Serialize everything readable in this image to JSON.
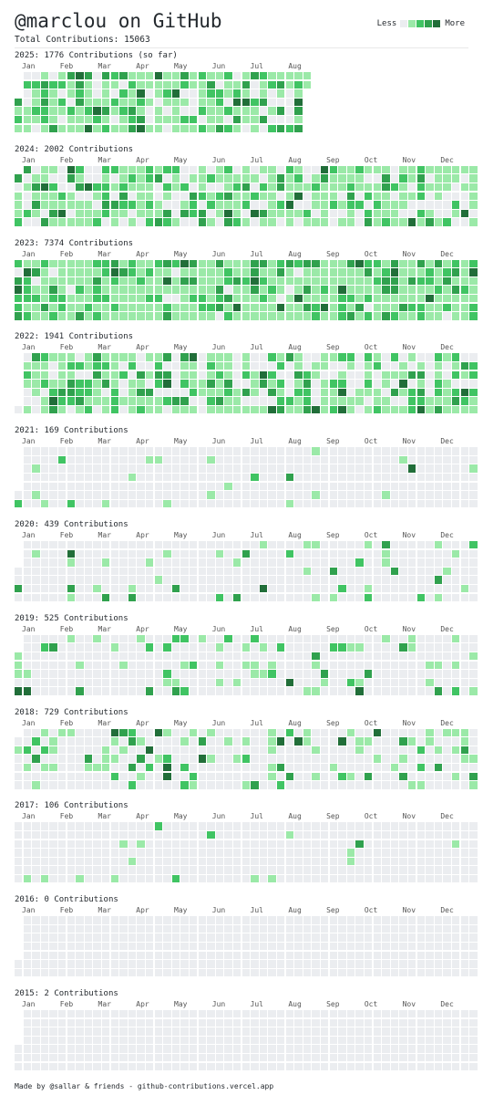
{
  "header": {
    "title": "@marclou on GitHub",
    "total": "Total Contributions: 15063",
    "legend_less": "Less",
    "legend_more": "More"
  },
  "colors": {
    "l0": "#ebedf0",
    "l1": "#9be9a8",
    "l2": "#40c463",
    "l3": "#30a14e",
    "l4": "#216e39"
  },
  "month_names": [
    "Jan",
    "Feb",
    "Mar",
    "Apr",
    "May",
    "Jun",
    "Jul",
    "Aug",
    "Sep",
    "Oct",
    "Nov",
    "Dec"
  ],
  "years": [
    {
      "title": "2025: 1776 Contributions (so far)",
      "year": 2025,
      "months": [
        "Jan",
        "Feb",
        "Mar",
        "Apr",
        "May",
        "Jun",
        "Jul",
        "Aug"
      ],
      "weeks": 34,
      "intensity": 1.6,
      "seed": 11
    },
    {
      "title": "2024: 2002 Contributions",
      "year": 2024,
      "months": [
        "Jan",
        "Feb",
        "Mar",
        "Apr",
        "May",
        "Jun",
        "Jul",
        "Aug",
        "Sep",
        "Oct",
        "Nov",
        "Dec"
      ],
      "weeks": 53,
      "intensity": 1.4,
      "seed": 23
    },
    {
      "title": "2023: 7374 Contributions",
      "year": 2023,
      "months": [
        "Jan",
        "Feb",
        "Mar",
        "Apr",
        "May",
        "Jun",
        "Jul",
        "Aug",
        "Sep",
        "Oct",
        "Nov",
        "Dec"
      ],
      "weeks": 53,
      "intensity": 1.9,
      "seed": 37
    },
    {
      "title": "2022: 1941 Contributions",
      "year": 2022,
      "months": [
        "Jan",
        "Feb",
        "Mar",
        "Apr",
        "May",
        "Jun",
        "Jul",
        "Aug",
        "Sep",
        "Oct",
        "Nov",
        "Dec"
      ],
      "weeks": 53,
      "intensity": 1.5,
      "seed": 41
    },
    {
      "title": "2021: 169 Contributions",
      "year": 2021,
      "months": [
        "Jan",
        "Feb",
        "Mar",
        "Apr",
        "May",
        "Jun",
        "Jul",
        "Aug",
        "Sep",
        "Oct",
        "Nov",
        "Dec"
      ],
      "weeks": 53,
      "intensity": 0.12,
      "seed": 53
    },
    {
      "title": "2020: 439 Contributions",
      "year": 2020,
      "months": [
        "Jan",
        "Feb",
        "Mar",
        "Apr",
        "May",
        "Jun",
        "Jul",
        "Aug",
        "Sep",
        "Oct",
        "Nov",
        "Dec"
      ],
      "weeks": 53,
      "intensity": 0.3,
      "seed": 61
    },
    {
      "title": "2019: 525 Contributions",
      "year": 2019,
      "months": [
        "Jan",
        "Feb",
        "Mar",
        "Apr",
        "May",
        "Jun",
        "Jul",
        "Aug",
        "Sep",
        "Oct",
        "Nov",
        "Dec"
      ],
      "weeks": 53,
      "intensity": 0.4,
      "seed": 71
    },
    {
      "title": "2018: 729 Contributions",
      "year": 2018,
      "months": [
        "Jan",
        "Feb",
        "Mar",
        "Apr",
        "May",
        "Jun",
        "Jul",
        "Aug",
        "Sep",
        "Oct",
        "Nov",
        "Dec"
      ],
      "weeks": 53,
      "intensity": 0.55,
      "seed": 83
    },
    {
      "title": "2017: 106 Contributions",
      "year": 2017,
      "months": [
        "Jan",
        "Feb",
        "Mar",
        "Apr",
        "May",
        "Jun",
        "Jul",
        "Aug",
        "Sep",
        "Oct",
        "Nov",
        "Dec"
      ],
      "weeks": 53,
      "intensity": 0.14,
      "seed": 97
    },
    {
      "title": "2016: 0 Contributions",
      "year": 2016,
      "months": [
        "Jan",
        "Feb",
        "Mar",
        "Apr",
        "May",
        "Jun",
        "Jul",
        "Aug",
        "Sep",
        "Oct",
        "Nov",
        "Dec"
      ],
      "weeks": 53,
      "intensity": 0,
      "seed": 101
    },
    {
      "title": "2015: 2 Contributions",
      "year": 2015,
      "months": [
        "Jan",
        "Feb",
        "Mar",
        "Apr",
        "May",
        "Jun",
        "Jul",
        "Aug",
        "Sep",
        "Oct",
        "Nov",
        "Dec"
      ],
      "weeks": 53,
      "intensity": 0.004,
      "seed": 113
    }
  ],
  "footer": "Made by @sallar & friends - github-contributions.vercel.app"
}
